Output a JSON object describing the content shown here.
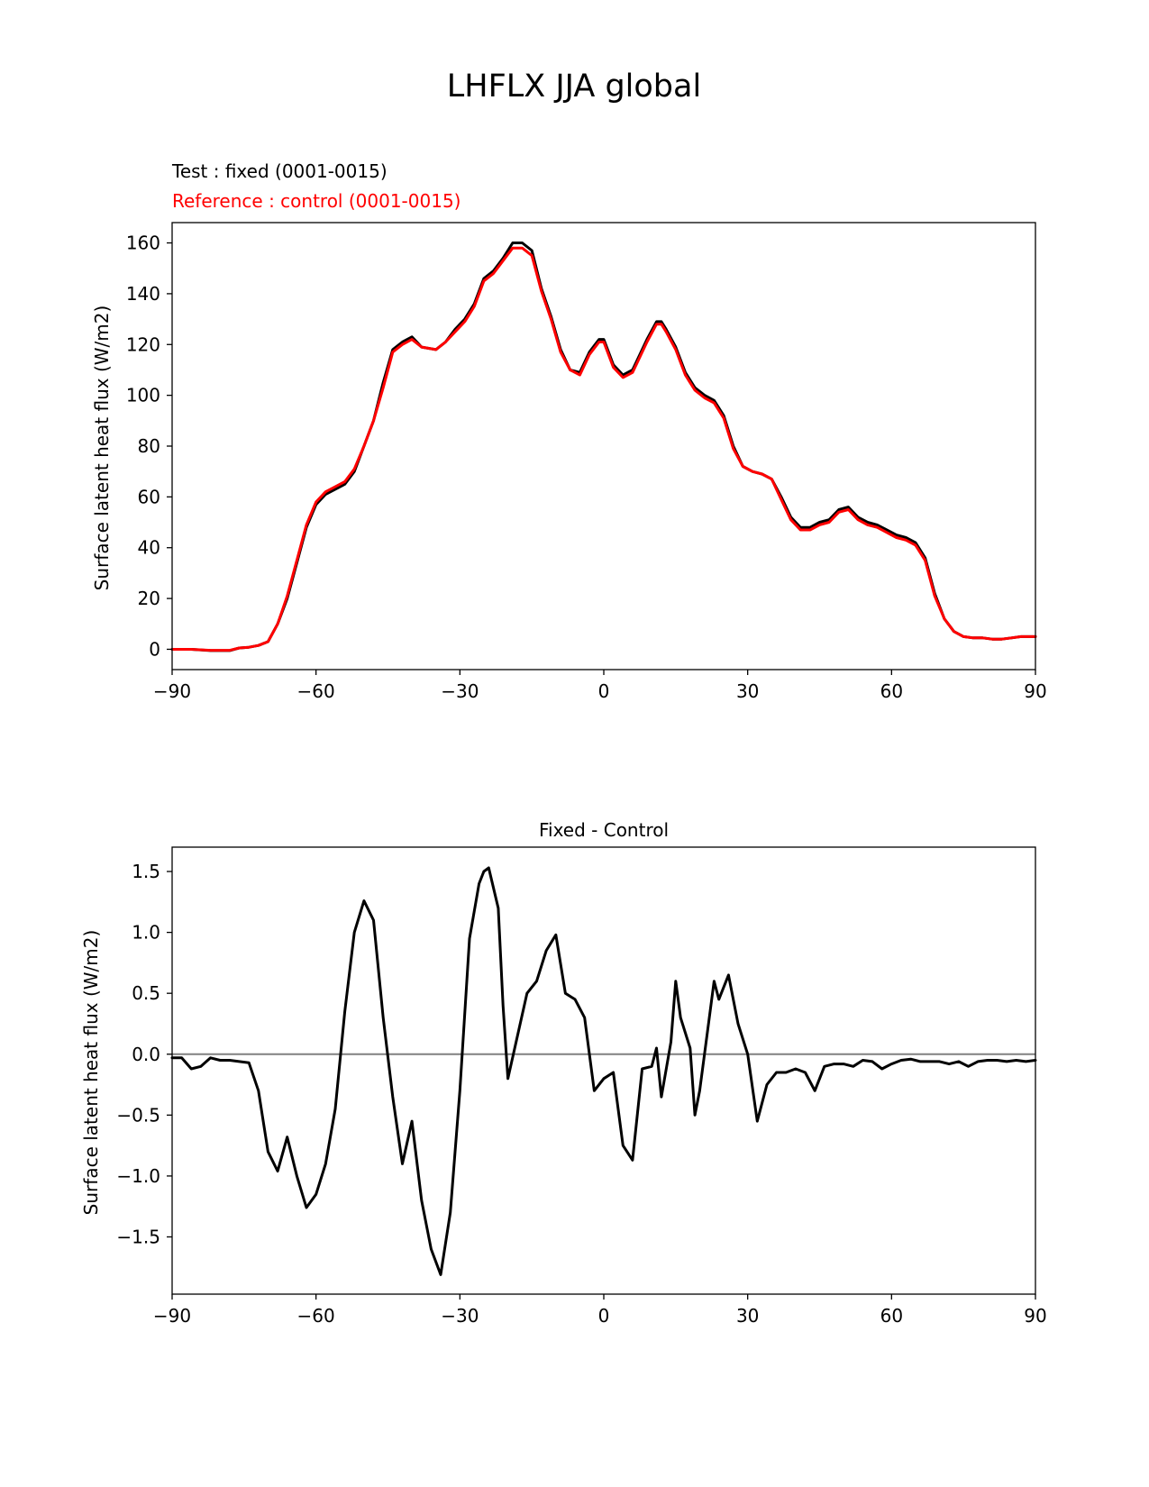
{
  "figure": {
    "title": "LHFLX JJA global",
    "test_label": "Test : fixed (0001-0015)",
    "reference_label": "Reference : control (0001-0015)",
    "colors": {
      "test": "#000000",
      "reference": "#ff0000",
      "zero_line": "#808080"
    }
  },
  "chart_data": [
    {
      "type": "line",
      "title": "",
      "xlabel": "",
      "ylabel": "Surface latent heat flux (W/m2)",
      "xlim": [
        -90,
        90
      ],
      "ylim": [
        -8,
        168
      ],
      "xticks": [
        -90,
        -60,
        -30,
        0,
        30,
        60,
        90
      ],
      "xtick_labels": [
        "−90",
        "−60",
        "−30",
        "0",
        "30",
        "60",
        "90"
      ],
      "yticks": [
        0,
        20,
        40,
        60,
        80,
        100,
        120,
        140,
        160
      ],
      "ytick_labels": [
        "0",
        "20",
        "40",
        "60",
        "80",
        "100",
        "120",
        "140",
        "160"
      ],
      "grid": false,
      "series": [
        {
          "name": "Test : fixed (0001-0015)",
          "color": "#000000",
          "x": [
            -90,
            -86,
            -82,
            -78,
            -76,
            -74,
            -72,
            -70,
            -68,
            -66,
            -64,
            -62,
            -60,
            -58,
            -56,
            -54,
            -52,
            -50,
            -48,
            -46,
            -44,
            -42,
            -40,
            -38,
            -35,
            -33,
            -31,
            -29,
            -27,
            -25,
            -23,
            -21,
            -19,
            -17,
            -15,
            -13,
            -11,
            -9,
            -7,
            -5,
            -3,
            -1,
            0,
            2,
            4,
            6,
            7,
            9,
            11,
            12,
            13,
            15,
            17,
            19,
            21,
            23,
            25,
            27,
            29,
            31,
            33,
            35,
            37,
            39,
            41,
            43,
            45,
            47,
            49,
            51,
            53,
            55,
            57,
            59,
            61,
            63,
            65,
            67,
            69,
            71,
            73,
            75,
            77,
            79,
            81,
            83,
            85,
            87,
            90
          ],
          "y": [
            0,
            0,
            -0.5,
            -0.5,
            0.5,
            0.8,
            1.5,
            3,
            10,
            20,
            34,
            48,
            57,
            61,
            63,
            65,
            70,
            80,
            90,
            105,
            118,
            121,
            123,
            119,
            118,
            121,
            126,
            130,
            136,
            146,
            149,
            154,
            160,
            160,
            157,
            142,
            131,
            118,
            110,
            109,
            117,
            122,
            122,
            112,
            108,
            110,
            114,
            122,
            129,
            129,
            126,
            119,
            109,
            103,
            100,
            98,
            92,
            80,
            72,
            70,
            69,
            67,
            60,
            52,
            48,
            48,
            50,
            51,
            55,
            56,
            52,
            50,
            49,
            47,
            45,
            44,
            42,
            36,
            22,
            12,
            7,
            5,
            4.5,
            4.5,
            4,
            4,
            4.5,
            5,
            5
          ]
        },
        {
          "name": "Reference : control (0001-0015)",
          "color": "#ff0000",
          "x": [
            -90,
            -86,
            -82,
            -78,
            -76,
            -74,
            -72,
            -70,
            -68,
            -66,
            -64,
            -62,
            -60,
            -58,
            -56,
            -54,
            -52,
            -50,
            -48,
            -46,
            -44,
            -42,
            -40,
            -38,
            -35,
            -33,
            -31,
            -29,
            -27,
            -25,
            -23,
            -21,
            -19,
            -17,
            -15,
            -13,
            -11,
            -9,
            -7,
            -5,
            -3,
            -1,
            0,
            2,
            4,
            6,
            7,
            9,
            11,
            12,
            13,
            15,
            17,
            19,
            21,
            23,
            25,
            27,
            29,
            31,
            33,
            35,
            37,
            39,
            41,
            43,
            45,
            47,
            49,
            51,
            53,
            55,
            57,
            59,
            61,
            63,
            65,
            67,
            69,
            71,
            73,
            75,
            77,
            79,
            81,
            83,
            85,
            87,
            90
          ],
          "y": [
            0,
            0,
            -0.4,
            -0.4,
            0.5,
            0.8,
            1.5,
            3,
            10,
            21,
            35,
            49,
            58,
            62,
            64,
            66,
            71,
            80,
            90,
            103,
            117,
            120,
            122,
            119,
            118,
            121,
            125,
            129,
            135,
            145,
            148,
            153,
            158,
            158,
            155,
            141,
            130,
            117,
            110,
            108,
            116,
            121,
            121,
            111,
            107,
            109,
            113,
            121,
            128,
            128,
            125,
            118,
            108,
            102,
            99,
            97,
            91,
            79,
            72,
            70,
            69,
            67,
            59,
            51,
            47,
            47,
            49,
            50,
            54,
            55,
            51,
            49,
            48,
            46,
            44,
            43,
            41,
            35,
            21,
            12,
            7,
            5,
            4.5,
            4.5,
            4,
            4,
            4.5,
            5,
            5
          ]
        }
      ]
    },
    {
      "type": "line",
      "title": "Fixed - Control",
      "xlabel": "",
      "ylabel": "Surface latent heat flux (W/m2)",
      "xlim": [
        -90,
        90
      ],
      "ylim": [
        -1.97,
        1.7
      ],
      "xticks": [
        -90,
        -60,
        -30,
        0,
        30,
        60,
        90
      ],
      "xtick_labels": [
        "−90",
        "−60",
        "−30",
        "0",
        "30",
        "60",
        "90"
      ],
      "yticks": [
        -1.5,
        -1.0,
        -0.5,
        0.0,
        0.5,
        1.0,
        1.5
      ],
      "ytick_labels": [
        "−1.5",
        "−1.0",
        "−0.5",
        "0.0",
        "0.5",
        "1.0",
        "1.5"
      ],
      "grid": false,
      "zero_line": true,
      "series": [
        {
          "name": "",
          "color": "#000000",
          "x": [
            -90,
            -88,
            -86,
            -84,
            -82,
            -80,
            -78,
            -76,
            -74,
            -72,
            -70,
            -68,
            -66,
            -64,
            -62,
            -60,
            -58,
            -56,
            -54,
            -52,
            -50,
            -48,
            -46,
            -44,
            -42,
            -40,
            -38,
            -36,
            -34,
            -32,
            -30,
            -28,
            -26,
            -25,
            -24,
            -22,
            -21,
            -20,
            -18,
            -16,
            -14,
            -12,
            -10,
            -8,
            -6,
            -4,
            -2,
            0,
            2,
            4,
            6,
            8,
            10,
            11,
            12,
            14,
            15,
            16,
            18,
            19,
            20,
            22,
            23,
            24,
            26,
            28,
            30,
            32,
            34,
            36,
            38,
            40,
            42,
            44,
            46,
            48,
            50,
            52,
            54,
            56,
            58,
            60,
            62,
            64,
            66,
            68,
            70,
            72,
            74,
            76,
            78,
            80,
            82,
            84,
            86,
            88,
            90
          ],
          "y": [
            -0.03,
            -0.03,
            -0.12,
            -0.1,
            -0.03,
            -0.05,
            -0.05,
            -0.06,
            -0.07,
            -0.3,
            -0.8,
            -0.96,
            -0.68,
            -1.0,
            -1.26,
            -1.15,
            -0.9,
            -0.45,
            0.35,
            1.0,
            1.26,
            1.1,
            0.3,
            -0.35,
            -0.9,
            -0.55,
            -1.2,
            -1.6,
            -1.81,
            -1.3,
            -0.3,
            0.95,
            1.4,
            1.5,
            1.53,
            1.2,
            0.4,
            -0.2,
            0.15,
            0.5,
            0.6,
            0.85,
            0.98,
            0.5,
            0.45,
            0.3,
            -0.3,
            -0.2,
            -0.15,
            -0.75,
            -0.87,
            -0.12,
            -0.1,
            0.05,
            -0.35,
            0.1,
            0.6,
            0.3,
            0.05,
            -0.5,
            -0.3,
            0.3,
            0.6,
            0.45,
            0.65,
            0.25,
            0.0,
            -0.55,
            -0.25,
            -0.15,
            -0.15,
            -0.12,
            -0.15,
            -0.3,
            -0.1,
            -0.08,
            -0.08,
            -0.1,
            -0.05,
            -0.06,
            -0.12,
            -0.08,
            -0.05,
            -0.04,
            -0.06,
            -0.06,
            -0.06,
            -0.08,
            -0.06,
            -0.1,
            -0.06,
            -0.05,
            -0.05,
            -0.06,
            -0.05,
            -0.06,
            -0.05
          ]
        }
      ]
    }
  ]
}
